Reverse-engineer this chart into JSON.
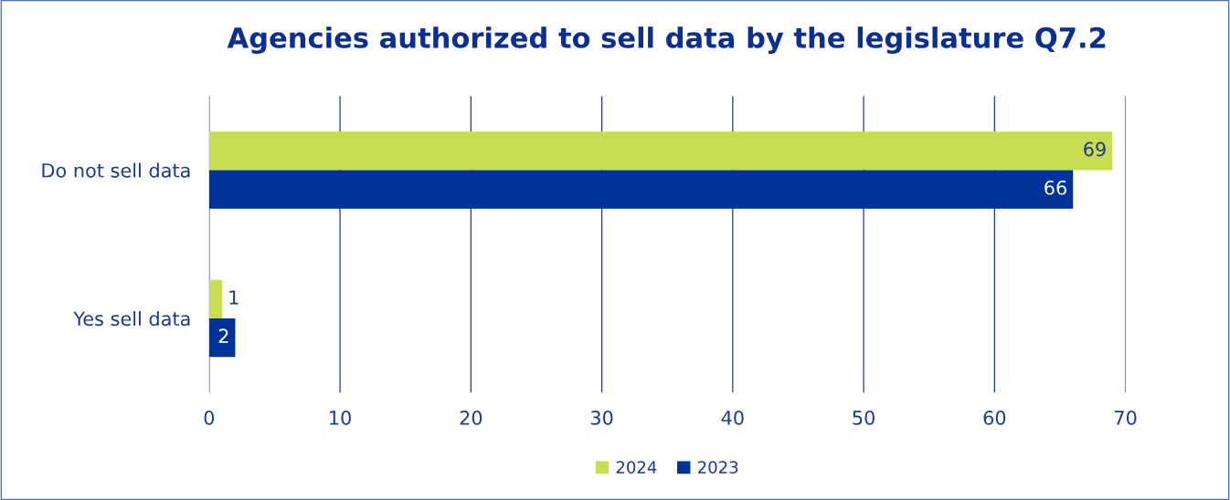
{
  "chart_data": {
    "type": "bar",
    "orientation": "horizontal",
    "title": "Agencies authorized to sell data by the legislature Q7.2",
    "categories": [
      "Do not sell data",
      "Yes sell data"
    ],
    "series": [
      {
        "name": "2024",
        "color": "#c9dd52",
        "values": [
          69,
          1
        ]
      },
      {
        "name": "2023",
        "color": "#003399",
        "values": [
          66,
          2
        ]
      }
    ],
    "xlim": [
      0,
      70
    ],
    "xticks": [
      0,
      10,
      20,
      30,
      40,
      50,
      60,
      70
    ],
    "grid": "x",
    "legend": "bottom",
    "data_labels": true
  }
}
